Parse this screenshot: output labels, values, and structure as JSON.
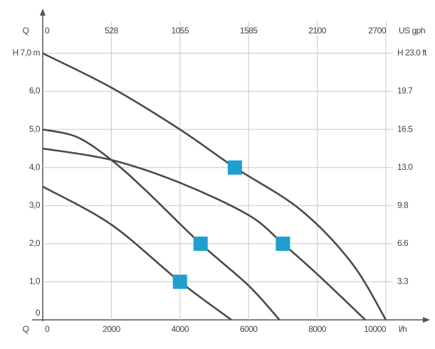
{
  "chart_data": {
    "type": "line",
    "x_label": "Q",
    "x_unit": "l/h",
    "x2_unit": "US gph",
    "xlim": [
      0,
      10000
    ],
    "xticks": [
      0,
      2000,
      4000,
      6000,
      8000,
      10000
    ],
    "x2ticks": [
      0,
      528,
      1055,
      1585,
      2100,
      2700
    ],
    "ylim": [
      0,
      7
    ],
    "yticks": [
      0,
      {
        "value": 1,
        "label": "1,0"
      },
      {
        "value": 2,
        "label": "2,0"
      },
      {
        "value": 3,
        "label": "3,0"
      },
      {
        "value": 4,
        "label": "4,0"
      },
      {
        "value": 5,
        "label": "5,0"
      },
      {
        "value": 6,
        "label": "6,0"
      },
      {
        "value": 7,
        "label": "H 7,0 m"
      }
    ],
    "y2ticks": [
      3.3,
      6.6,
      9.8,
      {
        "value": 13.0,
        "label": "13.0"
      },
      16.5,
      19.7,
      {
        "value": 23.0,
        "label": "H 23.0 ft"
      }
    ],
    "grid": true,
    "series": [
      {
        "color": "#4a4a4a",
        "x": [
          0,
          2000,
          4000,
          5600,
          7500,
          9000,
          10000
        ],
        "values": [
          7.0,
          6.1,
          5.0,
          4.0,
          2.9,
          1.5,
          0
        ]
      },
      {
        "color": "#4a4a4a",
        "x": [
          0,
          2000,
          4000,
          6000,
          7000,
          8000,
          9400
        ],
        "values": [
          4.5,
          4.2,
          3.6,
          2.75,
          2.0,
          1.2,
          0
        ]
      },
      {
        "color": "#4a4a4a",
        "x": [
          0,
          1000,
          2000,
          3000,
          4600,
          6000,
          6900
        ],
        "values": [
          5.0,
          4.8,
          4.2,
          3.4,
          2.0,
          0.9,
          0
        ]
      },
      {
        "color": "#4a4a4a",
        "x": [
          0,
          2000,
          4000,
          5500
        ],
        "values": [
          3.5,
          2.5,
          1.0,
          0
        ]
      }
    ],
    "points": {
      "color": "#1e9fd0",
      "x": [
        5600,
        4600,
        7000,
        4000
      ],
      "values": [
        4.0,
        2.0,
        2.0,
        1.0
      ]
    }
  }
}
